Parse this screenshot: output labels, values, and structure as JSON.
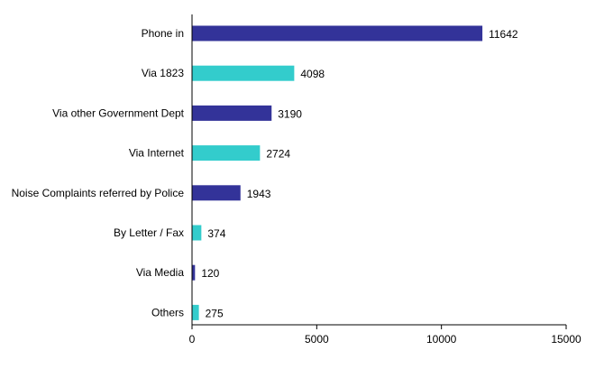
{
  "chart_data": {
    "type": "bar",
    "orientation": "horizontal",
    "categories": [
      "Phone in",
      "Via 1823",
      "Via other Government Dept",
      "Via Internet",
      "Noise Complaints referred by Police",
      "By Letter / Fax",
      "Via Media",
      "Others"
    ],
    "values": [
      11642,
      4098,
      3190,
      2724,
      1943,
      374,
      120,
      275
    ],
    "bar_colors": [
      "#333399",
      "#33CCCC",
      "#333399",
      "#33CCCC",
      "#333399",
      "#33CCCC",
      "#333399",
      "#33CCCC"
    ],
    "xlim": [
      0,
      15000
    ],
    "x_ticks": [
      0,
      5000,
      10000,
      15000
    ],
    "title": "",
    "xlabel": "",
    "ylabel": "",
    "grid": false,
    "legend": "none"
  }
}
